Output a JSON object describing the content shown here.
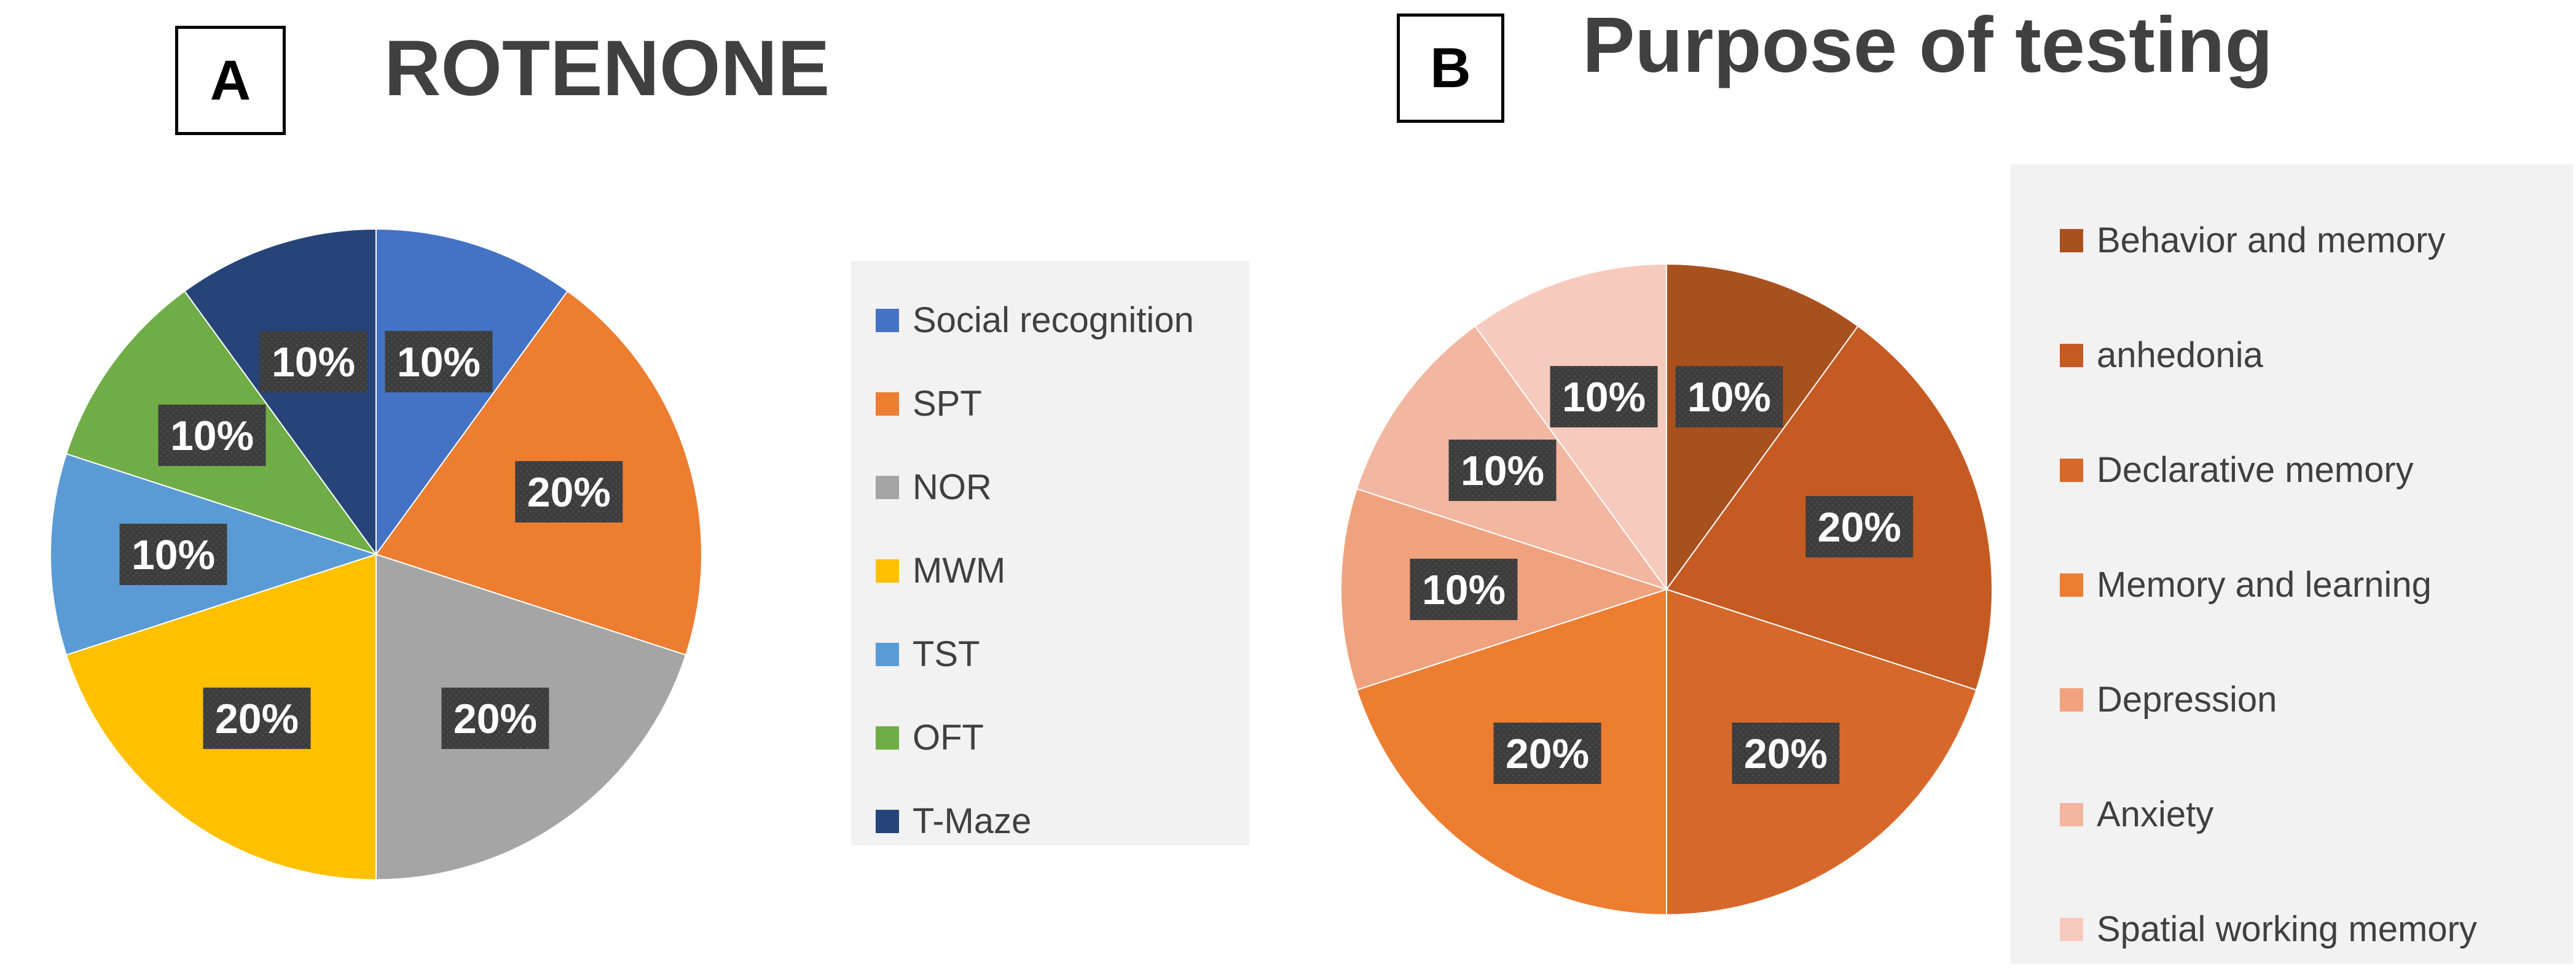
{
  "chart_data": [
    {
      "type": "pie",
      "panel_letter": "A",
      "title": "ROTENONE",
      "legend_position": "right",
      "categories": [
        "Social recognition",
        "SPT",
        "NOR",
        "MWM",
        "TST",
        "OFT",
        "T-Maze"
      ],
      "values": [
        10,
        20,
        20,
        20,
        10,
        10,
        10
      ],
      "data_labels": [
        "10%",
        "20%",
        "20%",
        "20%",
        "10%",
        "10%",
        "10%"
      ],
      "colors": [
        "#4472C4",
        "#ED7D31",
        "#A5A5A5",
        "#FFC000",
        "#5B9BD5",
        "#70AD47",
        "#264478"
      ]
    },
    {
      "type": "pie",
      "panel_letter": "B",
      "title": "Purpose of testing",
      "legend_position": "right",
      "categories": [
        "Behavior and memory",
        "anhedonia",
        "Declarative memory",
        "Memory and learning",
        "Depression",
        "Anxiety",
        "Spatial working memory"
      ],
      "values": [
        10,
        20,
        20,
        20,
        10,
        10,
        10
      ],
      "data_labels": [
        "10%",
        "20%",
        "20%",
        "20%",
        "10%",
        "10%",
        "10%"
      ],
      "colors": [
        "#A9501F",
        "#C55A22",
        "#D7682B",
        "#ED7D31",
        "#F0A27E",
        "#F3B6A0",
        "#F6CBBE"
      ]
    }
  ]
}
